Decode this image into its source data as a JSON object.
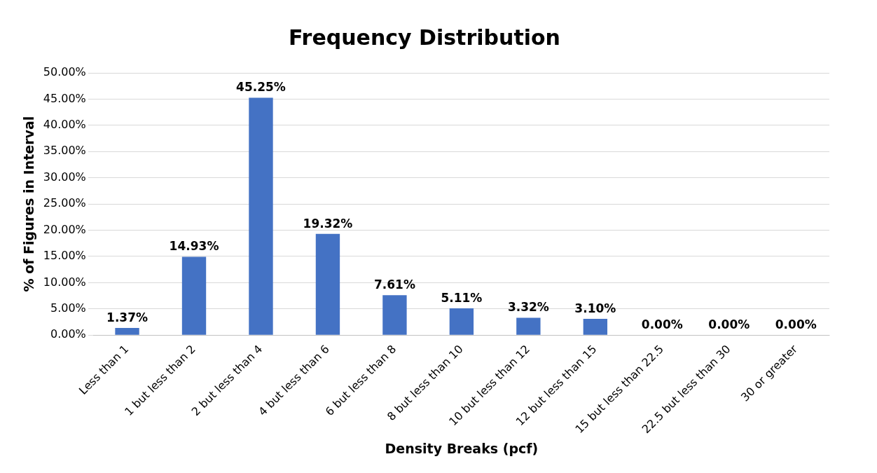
{
  "chart_data": {
    "type": "bar",
    "title": "Frequency Distribution",
    "xlabel": "Density Breaks (pcf)",
    "ylabel": "% of Figures in Interval",
    "categories": [
      "Less than 1",
      "1 but less than 2",
      "2 but less than 4",
      "4 but less than 6",
      "6 but less than 8",
      "8 but less than 10",
      "10 but less than 12",
      "12 but less than 15",
      "15 but less than 22.5",
      "22.5 but less than 30",
      "30 or greater"
    ],
    "values": [
      1.37,
      14.93,
      45.25,
      19.32,
      7.61,
      5.11,
      3.32,
      3.1,
      0,
      0,
      0
    ],
    "value_labels": [
      "1.37%",
      "14.93%",
      "45.25%",
      "19.32%",
      "7.61%",
      "5.11%",
      "3.32%",
      "3.10%",
      "0.00%",
      "0.00%",
      "0.00%"
    ],
    "color": "#4472c4",
    "ylim": [
      0,
      50
    ],
    "yticks": [
      {
        "value": 0,
        "label": "0.00%"
      },
      {
        "value": 5,
        "label": "5.00%"
      },
      {
        "value": 10,
        "label": "10.00%"
      },
      {
        "value": 15,
        "label": "15.00%"
      },
      {
        "value": 20,
        "label": "20.00%"
      },
      {
        "value": 25,
        "label": "25.00%"
      },
      {
        "value": 30,
        "label": "30.00%"
      },
      {
        "value": 35,
        "label": "35.00%"
      },
      {
        "value": 40,
        "label": "40.00%"
      },
      {
        "value": 45,
        "label": "45.00%"
      },
      {
        "value": 50,
        "label": "50.00%"
      }
    ],
    "grid": "y",
    "legend": false
  }
}
